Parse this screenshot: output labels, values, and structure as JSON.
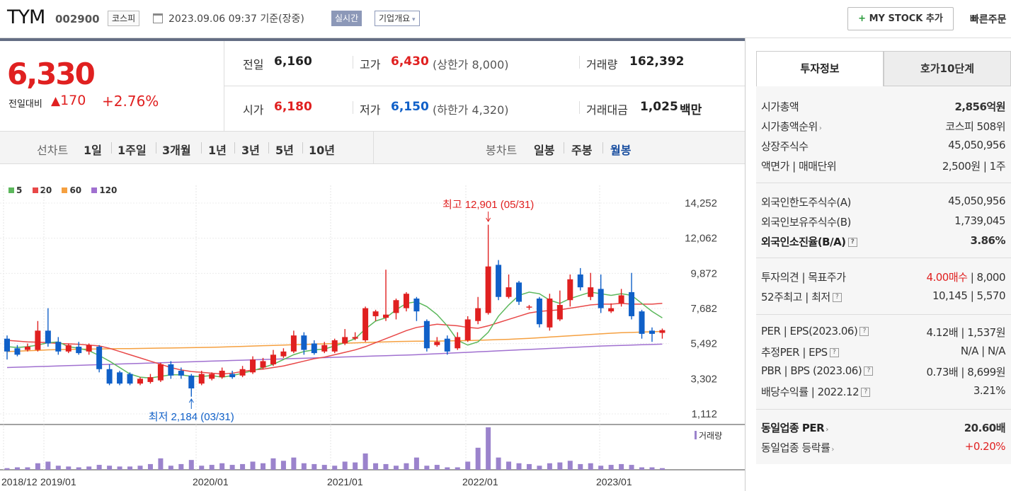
{
  "header": {
    "name": "TYM",
    "code": "002900",
    "market": "코스피",
    "basis_time": "2023.09.06 09:37 기준(장중)",
    "realtime": "실시간",
    "company_info": "기업개요",
    "my_stock": "MY STOCK 추가",
    "quick_order": "빠른주문"
  },
  "quote": {
    "price": "6,330",
    "change_label": "전일대비",
    "change_amount": "170",
    "change_percent": "+2.76%",
    "prev_close_label": "전일",
    "prev_close": "6,160",
    "high_label": "고가",
    "high": "6,430",
    "upper_limit": "(상한가 8,000)",
    "volume_label": "거래량",
    "volume": "162,392",
    "open_label": "시가",
    "open": "6,180",
    "low_label": "저가",
    "low": "6,150",
    "lower_limit": "(하한가 4,320)",
    "amount_label": "거래대금",
    "amount": "1,025",
    "amount_unit": "백만"
  },
  "periods": {
    "label": "선차트",
    "items": [
      "1일",
      "1주일",
      "3개월",
      "1년",
      "3년",
      "5년",
      "10년"
    ],
    "candle_label": "봉차트",
    "candle_items": [
      "일봉",
      "주봉",
      "월봉"
    ],
    "active_candle": "월봉"
  },
  "colors": {
    "up": "#e02020",
    "down": "#1060c8",
    "ma5": "#5cb85c",
    "ma20": "#e84848",
    "ma60": "#f5a040",
    "ma120": "#a070d0"
  },
  "chart_data": {
    "type": "candlestick",
    "legend": [
      "5",
      "20",
      "60",
      "120"
    ],
    "y_ticks": [
      "14,252",
      "12,062",
      "9,872",
      "7,682",
      "5,492",
      "3,302",
      "1,112"
    ],
    "ylim": [
      1112,
      14252
    ],
    "x_labels": [
      "2018/12",
      "2019/01",
      "2020/01",
      "2021/01",
      "2022/01",
      "2023/01"
    ],
    "max_label": "최고 12,901 (05/31)",
    "min_label": "최저 2,184 (03/31)",
    "volume_label": "거래량",
    "candles": [
      [
        5800,
        5000,
        6000,
        4500
      ],
      [
        5200,
        4800,
        5400,
        4700
      ],
      [
        5100,
        5300,
        5500,
        5000
      ],
      [
        5100,
        6300,
        6900,
        5000
      ],
      [
        6300,
        5500,
        7700,
        5300
      ],
      [
        5600,
        5000,
        5900,
        4800
      ],
      [
        5000,
        5400,
        5500,
        4900
      ],
      [
        5300,
        4900,
        5600,
        4800
      ],
      [
        5000,
        5400,
        5500,
        4800
      ],
      [
        5300,
        3900,
        5400,
        3700
      ],
      [
        3900,
        3000,
        4200,
        2900
      ],
      [
        3700,
        3000,
        3800,
        2900
      ],
      [
        3600,
        3000,
        3700,
        2900
      ],
      [
        3000,
        3300,
        3400,
        2900
      ],
      [
        3100,
        3400,
        3600,
        3000
      ],
      [
        3200,
        4200,
        4300,
        3100
      ],
      [
        4200,
        3500,
        4400,
        3300
      ],
      [
        3800,
        3500,
        4000,
        3300
      ],
      [
        3500,
        2700,
        3600,
        2184
      ],
      [
        3000,
        3600,
        3800,
        2900
      ],
      [
        3300,
        3600,
        3700,
        3200
      ],
      [
        3400,
        3800,
        4000,
        3300
      ],
      [
        3600,
        3400,
        3800,
        3300
      ],
      [
        3500,
        3900,
        4100,
        3400
      ],
      [
        3700,
        4500,
        4700,
        3600
      ],
      [
        4000,
        4400,
        4600,
        3900
      ],
      [
        4200,
        4800,
        5100,
        4100
      ],
      [
        4700,
        5000,
        5200,
        4600
      ],
      [
        5000,
        6000,
        6300,
        4900
      ],
      [
        6000,
        5100,
        6200,
        4800
      ],
      [
        5500,
        4900,
        5700,
        4800
      ],
      [
        5000,
        5400,
        5600,
        4900
      ],
      [
        5000,
        5700,
        5800,
        4900
      ],
      [
        5500,
        5900,
        6400,
        5400
      ],
      [
        5800,
        5900,
        6200,
        5700
      ],
      [
        5700,
        7700,
        7800,
        5600
      ],
      [
        7200,
        7500,
        7600,
        6900
      ],
      [
        7100,
        7300,
        10100,
        6900
      ],
      [
        7400,
        8200,
        8300,
        7000
      ],
      [
        7700,
        8600,
        8700,
        7500
      ],
      [
        8300,
        7500,
        8400,
        6900
      ],
      [
        6900,
        5200,
        7000,
        5000
      ],
      [
        5400,
        5600,
        5900,
        5300
      ],
      [
        5800,
        5000,
        6000,
        4800
      ],
      [
        5200,
        5900,
        6200,
        5100
      ],
      [
        5700,
        7000,
        7200,
        5600
      ],
      [
        6900,
        7700,
        8400,
        6700
      ],
      [
        7400,
        10300,
        12901,
        7300
      ],
      [
        10400,
        8400,
        10700,
        8200
      ],
      [
        8400,
        9000,
        9800,
        8300
      ],
      [
        9300,
        8100,
        9400,
        7900
      ],
      [
        7800,
        7800,
        7900,
        7600
      ],
      [
        8300,
        6700,
        8400,
        6500
      ],
      [
        6500,
        8300,
        8600,
        6300
      ],
      [
        7000,
        7900,
        8800,
        6900
      ],
      [
        8200,
        9500,
        9800,
        7800
      ],
      [
        9800,
        9000,
        10200,
        8800
      ],
      [
        8400,
        9000,
        9900,
        8200
      ],
      [
        8900,
        7700,
        9800,
        7400
      ],
      [
        7500,
        7700,
        8000,
        7400
      ],
      [
        8000,
        8500,
        8900,
        7800
      ],
      [
        8700,
        7200,
        9900,
        7000
      ],
      [
        7500,
        6100,
        7600,
        5800
      ],
      [
        6300,
        6100,
        6500,
        5600
      ],
      [
        6160,
        6330,
        6430,
        5800
      ]
    ],
    "ma5": [
      5300,
      5250,
      5300,
      5400,
      5550,
      5600,
      5300,
      5200,
      5050,
      4750,
      4400,
      4000,
      3600,
      3400,
      3350,
      3450,
      3550,
      3550,
      3450,
      3450,
      3500,
      3400,
      3500,
      3650,
      3800,
      4000,
      4200,
      4500,
      4800,
      5000,
      5100,
      5150,
      5350,
      5550,
      5800,
      6400,
      6900,
      7100,
      7600,
      8000,
      8100,
      7800,
      7300,
      6600,
      5700,
      5400,
      5600,
      6200,
      7200,
      7900,
      8500,
      8700,
      8600,
      8200,
      8000,
      8300,
      8500,
      8700,
      8600,
      8500,
      8600,
      8500,
      8000,
      7500,
      7100
    ],
    "ma20": [
      5700,
      5650,
      5600,
      5580,
      5550,
      5500,
      5480,
      5450,
      5400,
      5350,
      5200,
      5000,
      4800,
      4600,
      4400,
      4200,
      4000,
      3850,
      3750,
      3700,
      3650,
      3600,
      3650,
      3750,
      3850,
      3900,
      4000,
      4100,
      4250,
      4400,
      4550,
      4650,
      4800,
      4950,
      5100,
      5300,
      5550,
      5800,
      6050,
      6300,
      6500,
      6600,
      6700,
      6650,
      6600,
      6500,
      6450,
      6600,
      6800,
      7000,
      7200,
      7400,
      7500,
      7550,
      7600,
      7700,
      7800,
      7900,
      7950,
      7950,
      8000,
      7950,
      7950,
      7950,
      8000
    ],
    "ma60": [
      5000,
      5020,
      5050,
      5070,
      5100,
      5120,
      5130,
      5140,
      5150,
      5160,
      5170,
      5180,
      5180,
      5190,
      5200,
      5210,
      5220,
      5230,
      5240,
      5250,
      5260,
      5280,
      5300,
      5320,
      5340,
      5360,
      5380,
      5400,
      5420,
      5440,
      5460,
      5480,
      5500,
      5520,
      5540,
      5560,
      5580,
      5600,
      5620,
      5630,
      5640,
      5640,
      5650,
      5660,
      5670,
      5680,
      5700,
      5720,
      5740,
      5760,
      5790,
      5820,
      5860,
      5900,
      5940,
      5980,
      6020,
      6060,
      6100,
      6140,
      6170,
      6190,
      6210,
      6230,
      6250
    ],
    "ma120": [
      4000,
      4020,
      4040,
      4060,
      4080,
      4100,
      4120,
      4140,
      4160,
      4180,
      4200,
      4220,
      4240,
      4260,
      4280,
      4300,
      4320,
      4340,
      4360,
      4380,
      4400,
      4420,
      4440,
      4460,
      4480,
      4500,
      4520,
      4540,
      4560,
      4580,
      4600,
      4620,
      4640,
      4660,
      4680,
      4700,
      4720,
      4740,
      4760,
      4780,
      4800,
      4830,
      4860,
      4890,
      4920,
      4950,
      4980,
      5010,
      5040,
      5070,
      5100,
      5130,
      5160,
      5190,
      5220,
      5250,
      5280,
      5310,
      5340,
      5360,
      5380,
      5400,
      5420,
      5440,
      5460
    ],
    "volumes": [
      2,
      3,
      3,
      8,
      10,
      5,
      4,
      3,
      4,
      6,
      5,
      4,
      4,
      5,
      7,
      14,
      5,
      7,
      12,
      5,
      6,
      8,
      6,
      7,
      10,
      8,
      14,
      11,
      15,
      8,
      7,
      6,
      5,
      10,
      9,
      20,
      8,
      7,
      5,
      8,
      15,
      5,
      6,
      3,
      3,
      10,
      27,
      52,
      15,
      10,
      8,
      7,
      5,
      8,
      9,
      11,
      7,
      8,
      5,
      6,
      7,
      6,
      3,
      3,
      2
    ]
  },
  "invest": {
    "tab_active": "투자정보",
    "tab_other": "호가10단계",
    "rows": [
      {
        "k": "시가총액",
        "v": "2,856억원"
      },
      {
        "k": "시가총액순위",
        "v": "코스피 508위"
      },
      {
        "k": "상장주식수",
        "v": "45,050,956"
      },
      {
        "k": "액면가 | 매매단위",
        "v": "2,500원 | 1주"
      },
      {
        "k": "외국인한도주식수(A)",
        "v": "45,050,956"
      },
      {
        "k": "외국인보유주식수(B)",
        "v": "1,739,045"
      },
      {
        "k": "외국인소진율(B/A)",
        "v": "3.86%"
      },
      {
        "k": "투자의견 | 목표주가",
        "v1": "4.00매수",
        "v2": " | 8,000"
      },
      {
        "k": "52주최고 | 최저",
        "v": "10,145 | 5,570"
      },
      {
        "k": "PER | EPS(2023.06)",
        "v": "4.12배 | 1,537원"
      },
      {
        "k": "추정PER | EPS",
        "v": "N/A | N/A"
      },
      {
        "k": "PBR | BPS (2023.06)",
        "v": "0.73배 | 8,699원"
      },
      {
        "k": "배당수익률 | 2022.12",
        "v": "3.21%"
      },
      {
        "k": "동일업종 PER",
        "v": "20.60배"
      },
      {
        "k": "동일업종 등락률",
        "v": "+0.20%"
      }
    ]
  }
}
